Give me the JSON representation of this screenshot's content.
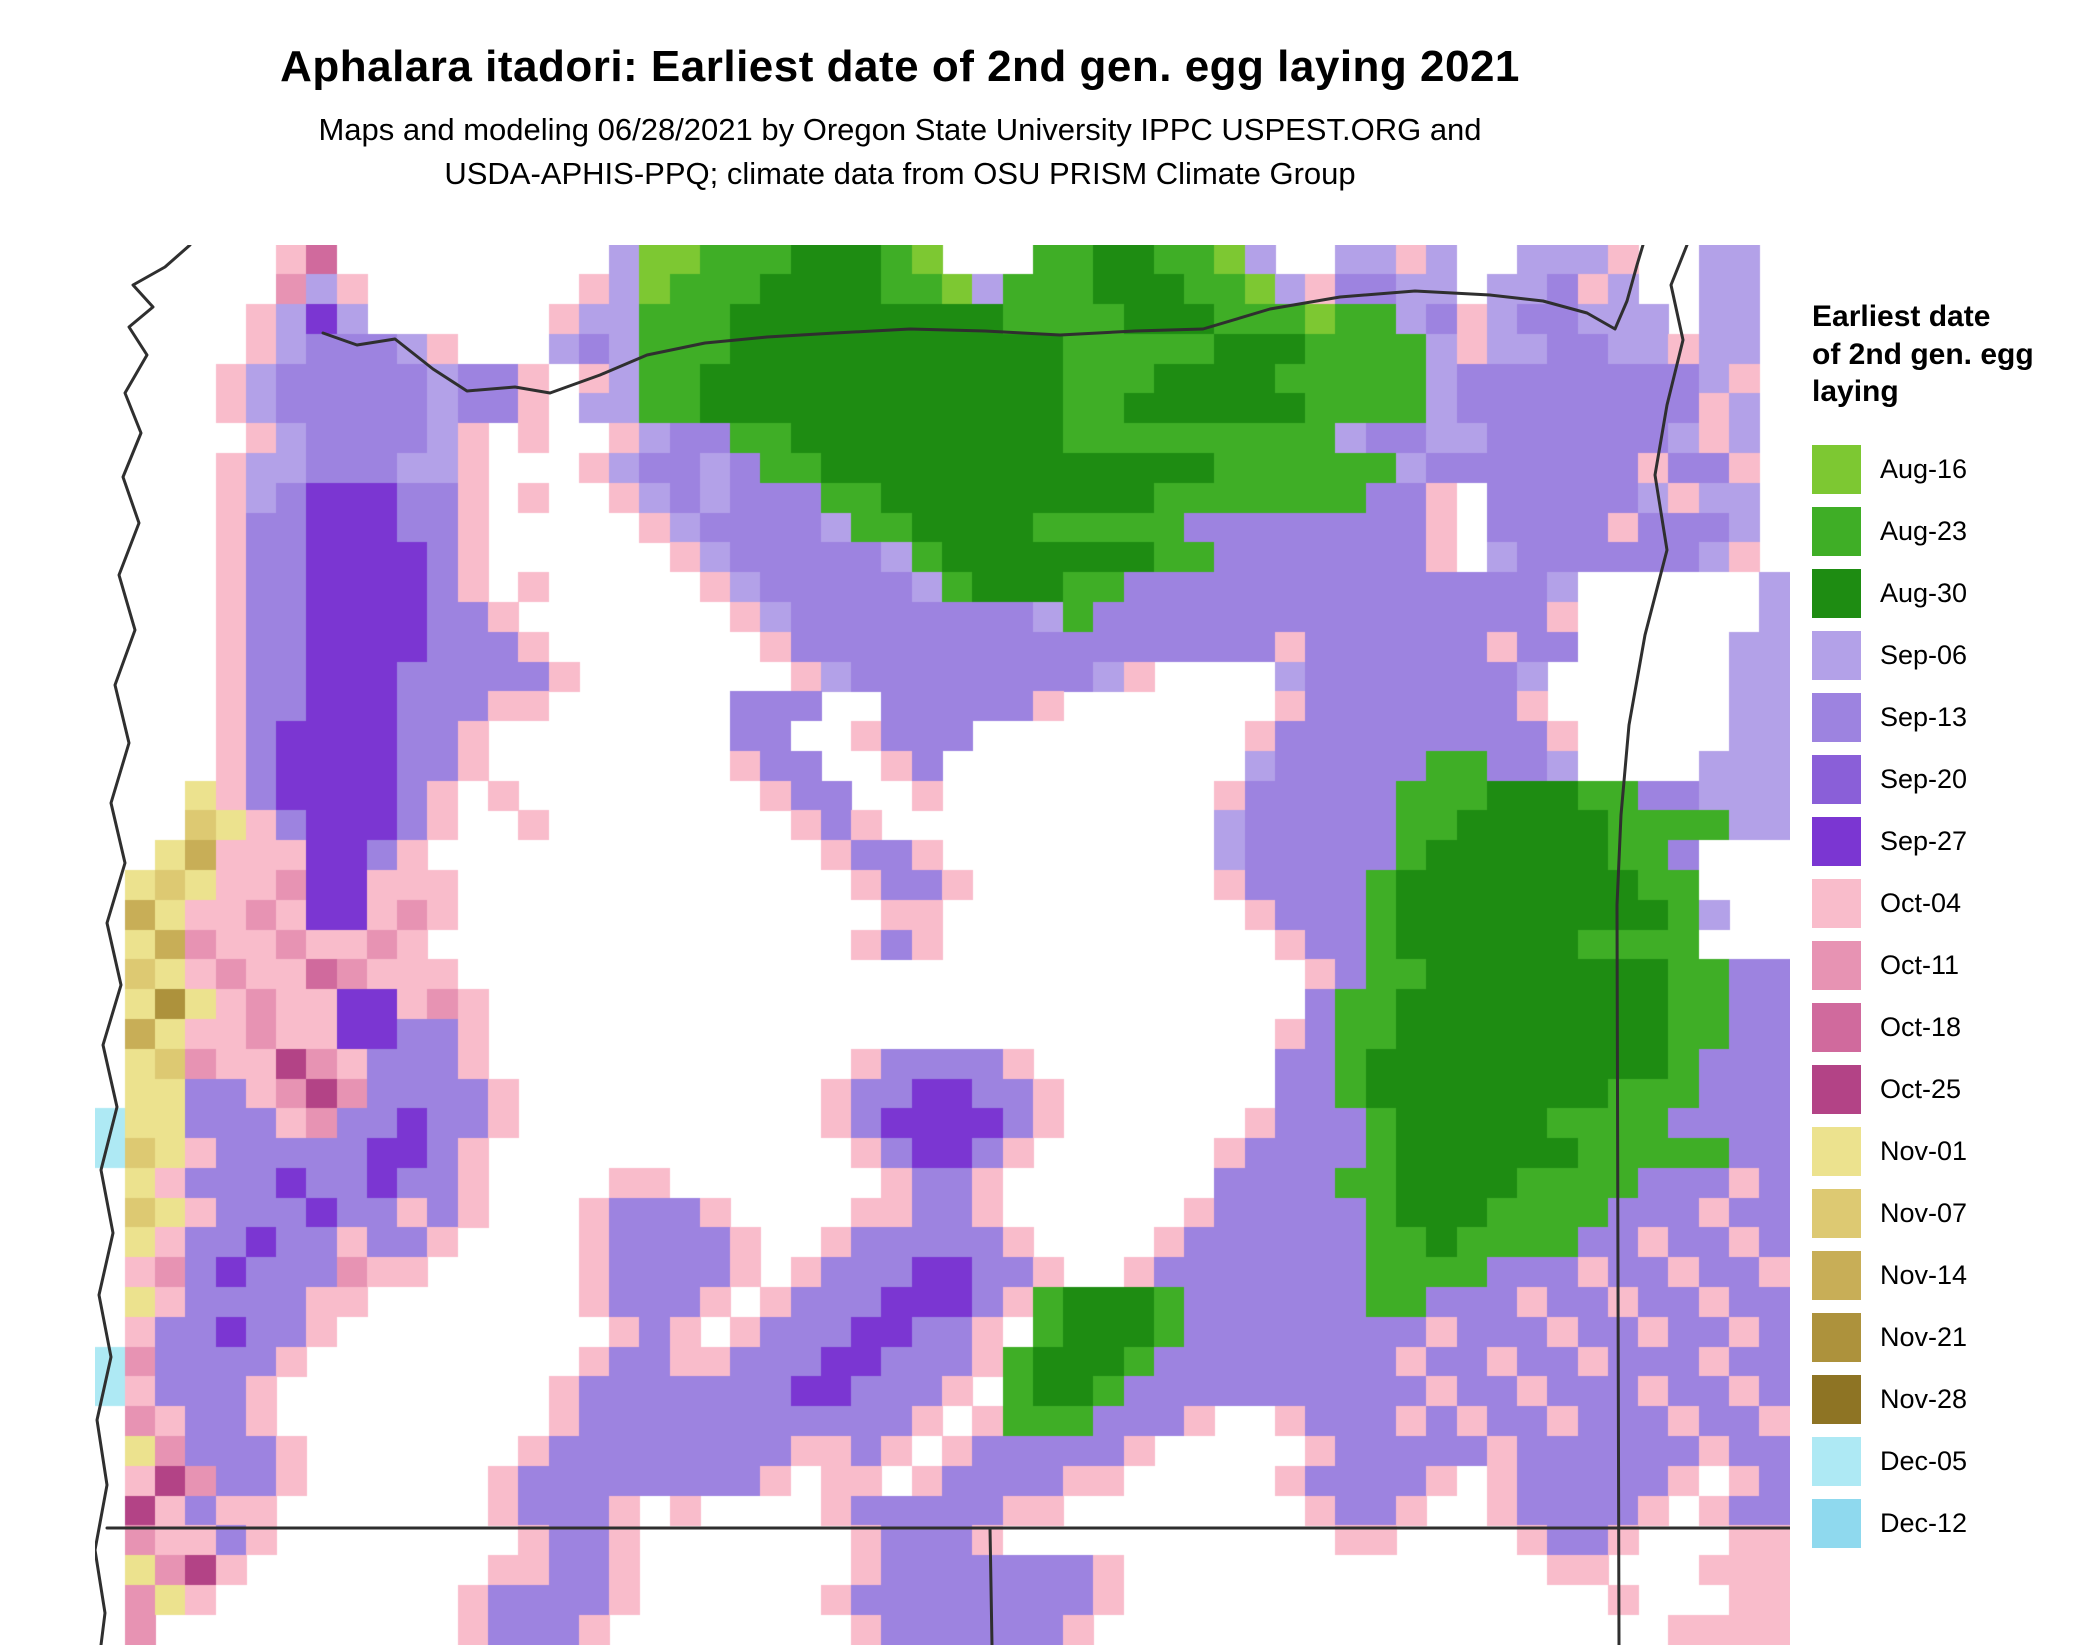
{
  "header": {
    "title": "Aphalara itadori: Earliest date of 2nd gen. egg laying 2021",
    "subtitle_line1": "Maps and modeling 06/28/2021 by Oregon State University IPPC USPEST.ORG and",
    "subtitle_line2": "USDA-APHIS-PPQ; climate data from OSU PRISM Climate Group"
  },
  "legend": {
    "title_lines": [
      "Earliest date",
      "of 2nd gen. egg",
      "laying"
    ],
    "items": [
      {
        "label": "Aug-16",
        "color": "#7dc832"
      },
      {
        "label": "Aug-23",
        "color": "#3fae26"
      },
      {
        "label": "Aug-30",
        "color": "#1e8c12"
      },
      {
        "label": "Sep-06",
        "color": "#b3a1e8"
      },
      {
        "label": "Sep-13",
        "color": "#9d83e0"
      },
      {
        "label": "Sep-20",
        "color": "#8a5fd8"
      },
      {
        "label": "Sep-27",
        "color": "#7b36d2"
      },
      {
        "label": "Oct-04",
        "color": "#f9bccb"
      },
      {
        "label": "Oct-11",
        "color": "#e793b3"
      },
      {
        "label": "Oct-18",
        "color": "#d06a9d"
      },
      {
        "label": "Oct-25",
        "color": "#b34386"
      },
      {
        "label": "Nov-01",
        "color": "#ece28e"
      },
      {
        "label": "Nov-07",
        "color": "#ddc972"
      },
      {
        "label": "Nov-14",
        "color": "#c8ae57"
      },
      {
        "label": "Nov-21",
        "color": "#ad923c"
      },
      {
        "label": "Nov-28",
        "color": "#8e7424"
      },
      {
        "label": "Dec-05",
        "color": "#aee9f4"
      },
      {
        "label": "Dec-12",
        "color": "#8fd9ee"
      }
    ]
  },
  "map": {
    "border_color": "#2f2f2f",
    "cols": 56,
    "palette": {
      ".": "#ffffff",
      "a": "#7dc832",
      "b": "#3fae26",
      "c": "#1e8c12",
      "d": "#b3a1e8",
      "e": "#9d83e0",
      "f": "#8a5fd8",
      "g": "#7b36d2",
      "h": "#f9bccb",
      "i": "#e793b3",
      "j": "#d06a9d",
      "k": "#b34386",
      "l": "#ece28e",
      "m": "#ddc972",
      "n": "#c8ae57",
      "o": "#ad923c",
      "p": "#8e7424",
      "q": "#aee9f4",
      "r": "#8fd9ee"
    },
    "grid_rle": [
      "6.hj9.d2a3b3cba3.2b2c2bad2.2dhd2.3dh2.2d.",
      "6.idh7.hda3b4c2badb2b3c2badh2e2d.ddehd2.2d.",
      "5.hdgd6.hdd2bb9cb3b3c2bba2bdehd2e2dd.2d.",
      "5.hd3edh3.dedb2b11c2b3b3cb3bdh2d2e2dh2d.",
      "4.hd5ed2eh.hd2b12c3b2c2c2b3bde7edh.",
      "4.hd5ed2eh.2d2b12c2b3c3cb3bde7ehd.",
      "5.hd4edh.h2.hd2ebb9cb8bd2edd6edhd.",
      "4.hdd3eddh3.hd2ede2b13c6bde6eh2eh.",
      "4.hde3g2eh.h2.hded3ebb9cb4b2b2eh.5edh2d.",
      "4.h2e3g2eh5.hd4edbb4c5b8eh.4eh3ed.",
      "4.h2e4geh6.hd5edb7c2b7eh.d6edh.",
      "4.h2e4geh.h5.hd5edb3c2b14ed6.d",
      "4.h2e4g2eh7.hd8edb15eh6.d",
      "4.h2e4g3eh7.h16eh6eh2e5.2d",
      "4.h2e3g5eh7.hd8edh4.d7ed6.2d",
      "4.h2e3g3e2h6.3e2.5eh7.h7eh6.2d",
      "4.he4g2eh8.2e2.h3e9.h9eh5.2d",
      "4.he4g2eh8.h2e2.he10.d5e2b2ed4.3d",
      "3.lhe4geh.h8.h2e2.h9.h5e3b3c2b2e3d",
      "3.mlhe3geh2.h8.heh11.d5e2b5c4b2d",
      "2.ln3h2geh13.h2eh9.d5eb6c2be3.",
      ".lml2hi2g3h13.h2eh8.h4eb8c2b3.",
      ".nl2hih2ghih14.2h10.h3eb9cbd2.",
      ".lni2hi2hih14.heh11.h2eb6c4b3.",
      ".mlhi2hji3h28.he2b8c2b2e",
      ".lolhi2h2ghih27.e2b9c2b2e",
      ".nl2hi2h2g2eh26.hebb9c2b2e",
      ".lmi2hkih3eh12.h4eh8.2eb10cb3e",
      ".2l2ehiki4eh10.h2e2g2eh7.2eb8c3b3e",
      "q2l3ehi2eg2eh10.he4geh6.h3eb5c4b4e",
      "qmlh5e2geh12.he2geh6.h4eb6c5b2e",
      ".lh3eg2eg2eh4.2h7.h2eh7.4e2b4c4b3ehe",
      ".mlh3eg2eheh3.h3eh4.2h2eh6.h5eb3c4b3eh2e",
      ".lh2eg2eh2eh4.h4eh2.h5eh4.h6e2bc4b2eh2ehe",
      ".hieg3ei2h5.h4eh.h3e2g2eh2.h7e4b3eh2eh2eh",
      ".lh4e2h7.h3eh.h3e3gehb3cb6e2b3eh2eh2eh2e",
      ".h2eg2eh9.heh.h3e2g2eh.b3cb8eh3eh2eh2ehe",
      "qi4eh9.h2e2h3e2g3ehb3cb8eh2eh2eh3eh2e",
      "qh3eh9.h7e2g3eh.b2cb10eh2eh3eh2ehe",
      ".ih2eh9.h11eh.h3b3eh2.h3eheh2eh3eh2eh",
      ".li3eh7.h8e2heh.h5eh5.h5eh6eh2e",
      ".hki2eh6.h8eh.2h.h4e2h5.h4eh.h5eh.he",
      ".khe2h7.h3eh.h4.h5e2h8.h2eh2.h4eh.h2e",
      ".i2heh8.h2eh7.h3eh11.2h4.h2eh3.2h",
      ".likh8.2h2eh7.h7eh14.2h3.3h",
      ".ilh8.h4eh6.h8eh16.h3.2h",
      ".i10.h3eh8.h6eh19.4h"
    ],
    "borders": [
      {
        "name": "coastline",
        "points": [
          [
            95,
            0
          ],
          [
            70,
            22
          ],
          [
            38,
            40
          ],
          [
            58,
            62
          ],
          [
            34,
            82
          ],
          [
            52,
            110
          ],
          [
            30,
            148
          ],
          [
            46,
            188
          ],
          [
            28,
            232
          ],
          [
            44,
            278
          ],
          [
            24,
            330
          ],
          [
            40,
            385
          ],
          [
            20,
            440
          ],
          [
            34,
            498
          ],
          [
            16,
            558
          ],
          [
            30,
            618
          ],
          [
            12,
            678
          ],
          [
            26,
            740
          ],
          [
            8,
            800
          ],
          [
            22,
            862
          ],
          [
            6,
            925
          ],
          [
            18,
            988
          ],
          [
            4,
            1050
          ],
          [
            16,
            1112
          ],
          [
            2,
            1175
          ],
          [
            12,
            1240
          ],
          [
            0,
            1305
          ],
          [
            10,
            1368
          ],
          [
            6,
            1400
          ]
        ]
      },
      {
        "name": "columbia-river-north-border",
        "points": [
          [
            228,
            88
          ],
          [
            262,
            100
          ],
          [
            300,
            94
          ],
          [
            338,
            124
          ],
          [
            372,
            146
          ],
          [
            420,
            142
          ],
          [
            455,
            148
          ],
          [
            505,
            130
          ],
          [
            552,
            110
          ],
          [
            610,
            98
          ],
          [
            672,
            92
          ],
          [
            740,
            88
          ],
          [
            815,
            84
          ],
          [
            890,
            86
          ],
          [
            965,
            90
          ],
          [
            1040,
            86
          ],
          [
            1108,
            84
          ],
          [
            1175,
            64
          ],
          [
            1245,
            52
          ],
          [
            1320,
            46
          ],
          [
            1395,
            50
          ],
          [
            1448,
            56
          ],
          [
            1492,
            68
          ],
          [
            1520,
            84
          ],
          [
            1532,
            56
          ],
          [
            1542,
            20
          ],
          [
            1548,
            0
          ]
        ]
      },
      {
        "name": "snake-river-east-border",
        "points": [
          [
            1592,
            0
          ],
          [
            1576,
            40
          ],
          [
            1588,
            95
          ],
          [
            1572,
            160
          ],
          [
            1560,
            230
          ],
          [
            1572,
            305
          ],
          [
            1550,
            390
          ],
          [
            1534,
            480
          ],
          [
            1526,
            570
          ],
          [
            1522,
            660
          ],
          [
            1524,
            1400
          ]
        ]
      },
      {
        "name": "south-border-42n",
        "points": [
          [
            12,
            1283
          ],
          [
            1695,
            1283
          ]
        ]
      },
      {
        "name": "california-nevada-border",
        "points": [
          [
            895,
            1283
          ],
          [
            897,
            1400
          ]
        ]
      }
    ]
  }
}
